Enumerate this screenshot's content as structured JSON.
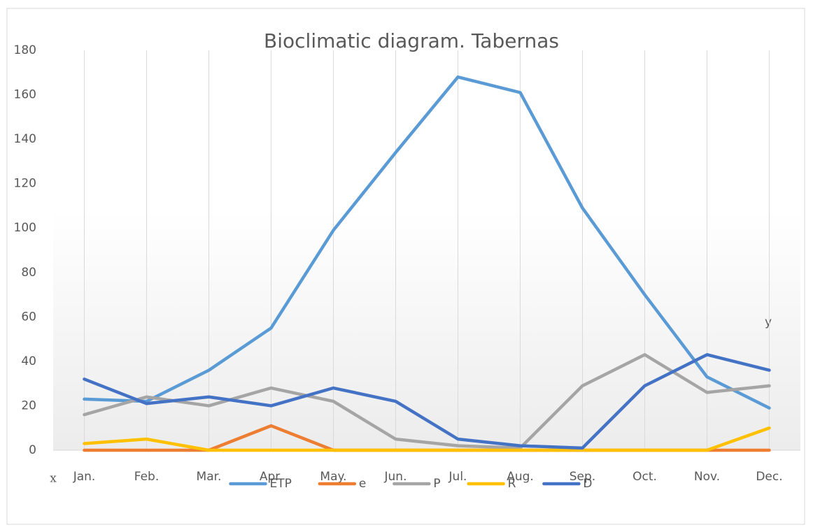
{
  "chart_data": {
    "type": "line",
    "title": "Bioclimatic diagram. Tabernas",
    "categories": [
      "Jan.",
      "Feb.",
      "Mar.",
      "Apr.",
      "May.",
      "Jun.",
      "Jul.",
      "Aug.",
      "Sep.",
      "Oct.",
      "Nov.",
      "Dec."
    ],
    "series": [
      {
        "name": "ETP",
        "color": "#5b9bd5",
        "values": [
          23,
          22,
          36,
          55,
          99,
          134,
          168,
          161,
          109,
          70,
          33,
          19
        ]
      },
      {
        "name": "e",
        "color": "#ed7d31",
        "values": [
          0,
          0,
          0,
          11,
          0,
          0,
          0,
          0,
          0,
          0,
          0,
          0
        ]
      },
      {
        "name": "P",
        "color": "#a5a5a5",
        "values": [
          16,
          24,
          20,
          28,
          22,
          5,
          2,
          1,
          29,
          43,
          26,
          29
        ]
      },
      {
        "name": "R",
        "color": "#ffc000",
        "values": [
          3,
          5,
          0,
          0,
          0,
          0,
          0,
          0,
          0,
          0,
          0,
          10
        ]
      },
      {
        "name": "D",
        "color": "#4472c4",
        "values": [
          32,
          21,
          24,
          20,
          28,
          22,
          5,
          2,
          1,
          29,
          43,
          36
        ]
      }
    ],
    "ylim": [
      0,
      180
    ],
    "yticks": [
      0,
      20,
      40,
      60,
      80,
      100,
      120,
      140,
      160,
      180
    ],
    "grid": "vertical",
    "legend": "bottom",
    "annotations": [
      "x",
      "y"
    ]
  }
}
